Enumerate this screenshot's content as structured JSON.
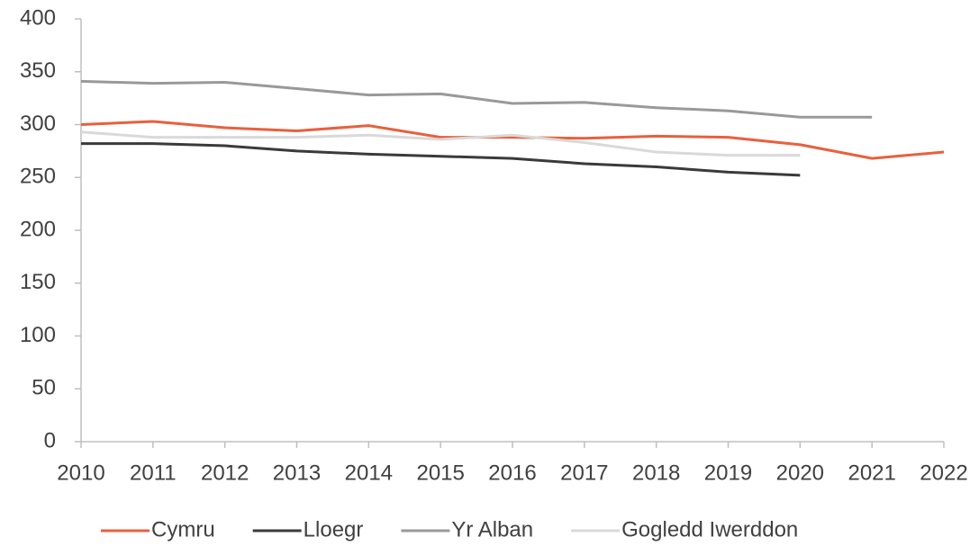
{
  "chart_data": {
    "type": "line",
    "categories": [
      "2010",
      "2011",
      "2012",
      "2013",
      "2014",
      "2015",
      "2016",
      "2017",
      "2018",
      "2019",
      "2020",
      "2021",
      "2022"
    ],
    "series": [
      {
        "name": "Cymru",
        "color": "#e8603c",
        "values": [
          300,
          303,
          297,
          294,
          299,
          288,
          288,
          287,
          289,
          288,
          281,
          268,
          274
        ]
      },
      {
        "name": "Lloegr",
        "color": "#3a3a3a",
        "values": [
          282,
          282,
          280,
          275,
          272,
          270,
          268,
          263,
          260,
          255,
          252,
          null,
          null
        ]
      },
      {
        "name": "Yr Alban",
        "color": "#999999",
        "values": [
          341,
          339,
          340,
          334,
          328,
          329,
          320,
          321,
          316,
          313,
          307,
          307,
          null
        ]
      },
      {
        "name": "Gogledd Iwerddon",
        "color": "#d9d9d9",
        "values": [
          293,
          288,
          288,
          288,
          290,
          286,
          290,
          283,
          274,
          271,
          271,
          null,
          null
        ]
      }
    ],
    "ylim": [
      0,
      400
    ],
    "yticks": [
      0,
      50,
      100,
      150,
      200,
      250,
      300,
      350,
      400
    ],
    "legend": "bottom"
  }
}
